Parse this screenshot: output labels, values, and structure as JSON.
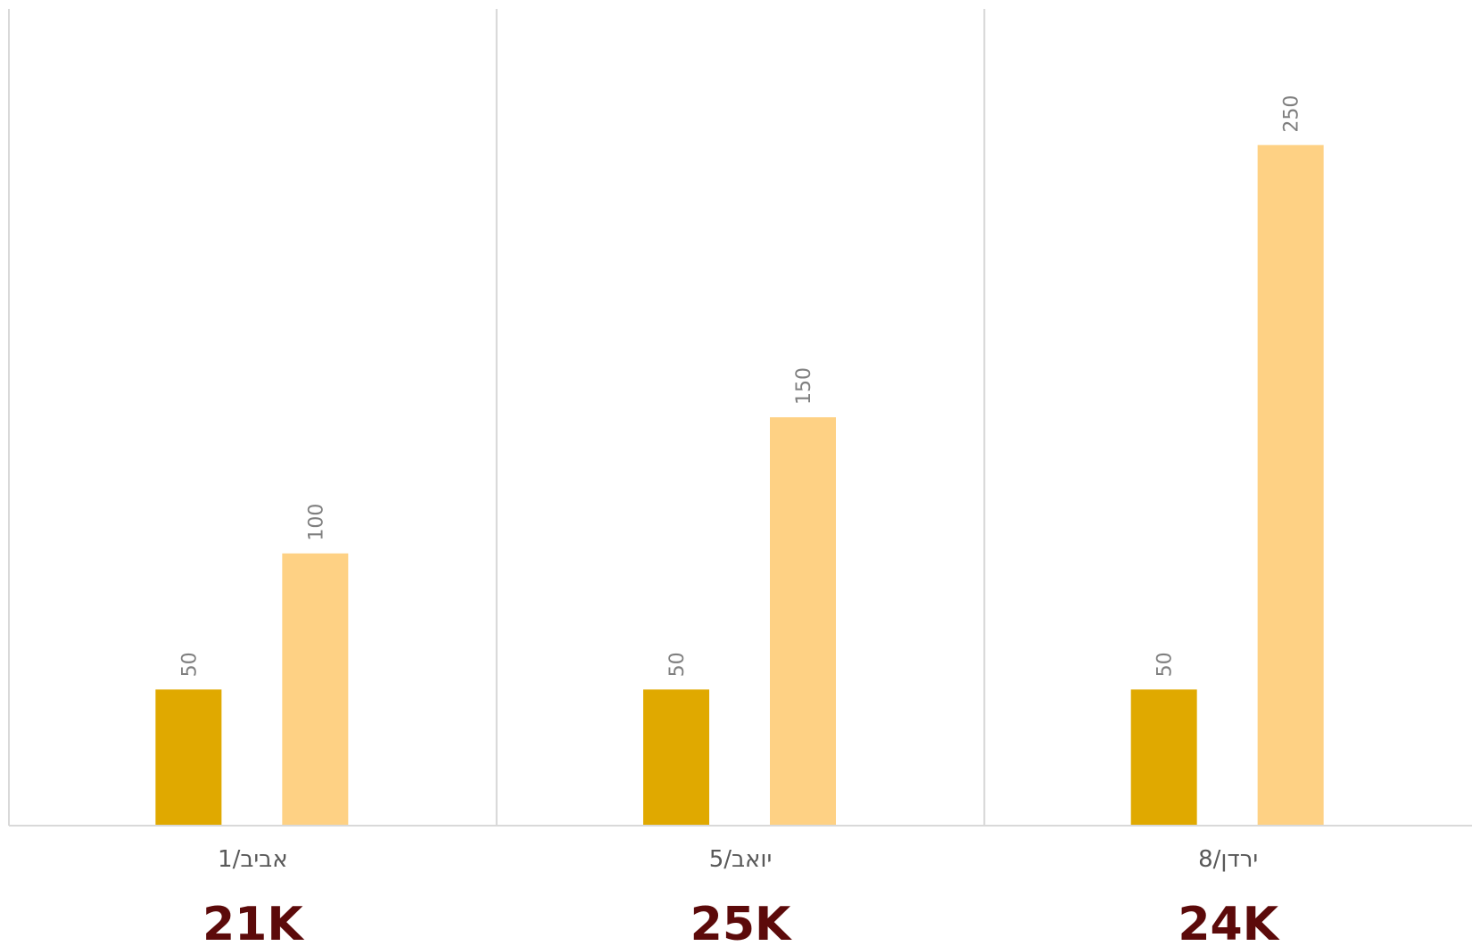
{
  "chart_data": {
    "type": "bar",
    "categories": [
      "אביב/1",
      "יואב/5",
      "ירדן/8"
    ],
    "series": [
      {
        "values": [
          50,
          50,
          50
        ],
        "color": "#E0A900"
      },
      {
        "values": [
          100,
          150,
          250
        ],
        "color": "#FED184"
      }
    ],
    "totals": [
      "21K",
      "25K",
      "24K"
    ],
    "ylim": [
      0,
      300
    ],
    "grid": false,
    "category_separators": true
  }
}
